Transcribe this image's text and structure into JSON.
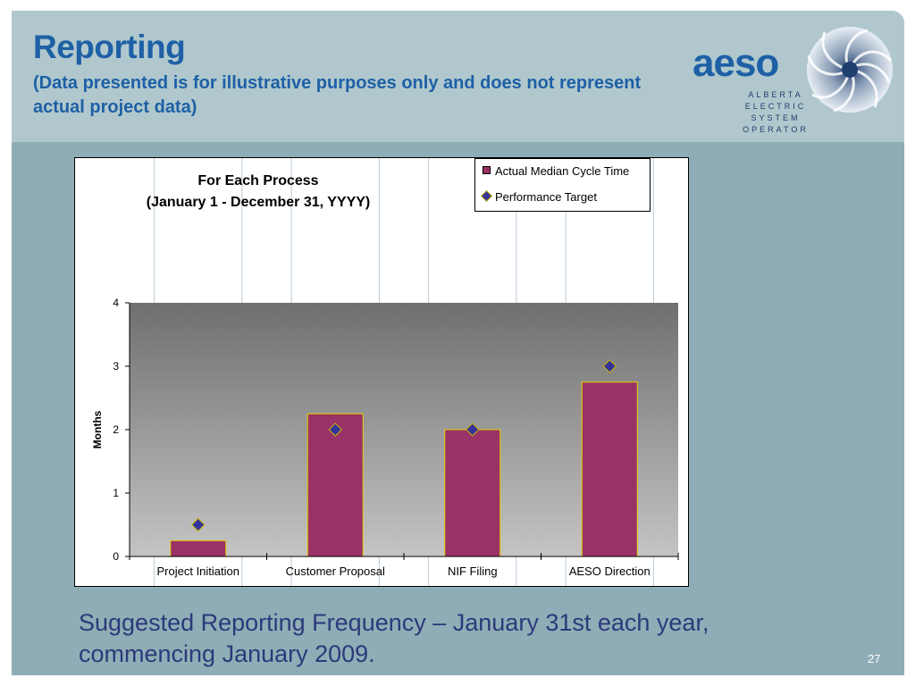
{
  "header": {
    "title": "Reporting",
    "subtitle": "(Data presented is for illustrative purposes only and does not represent actual project data)"
  },
  "logo": {
    "word": "aeso",
    "lines": [
      "ALBERTA",
      "ELECTRIC",
      "SYSTEM",
      "OPERATOR"
    ],
    "icon": "swirl-logo-icon"
  },
  "chart_data": {
    "type": "bar",
    "title": "For Each Process",
    "subtitle": "(January 1 - December 31, YYYY)",
    "categories": [
      "Project Initiation",
      "Customer Proposal",
      "NIF Filing",
      "AESO Direction"
    ],
    "series": [
      {
        "name": "Actual Median Cycle Time",
        "type": "bar",
        "values": [
          0.25,
          2.25,
          2.0,
          2.75
        ],
        "color": "#993366"
      },
      {
        "name": "Performance Target",
        "type": "scatter",
        "marker": "diamond",
        "values": [
          0.5,
          2.0,
          2.0,
          3.0
        ],
        "color": "#333399"
      }
    ],
    "xlabel": "",
    "ylabel": "Months",
    "ylim": [
      0,
      4
    ],
    "yticks": [
      0,
      1,
      2,
      3,
      4
    ],
    "legend": "top-right",
    "grid": false,
    "plot_background": "gradient dark gray to light gray"
  },
  "footer": {
    "text": "Suggested Reporting Frequency – January 31st each year, commencing January 2009.",
    "page_number": "27"
  }
}
